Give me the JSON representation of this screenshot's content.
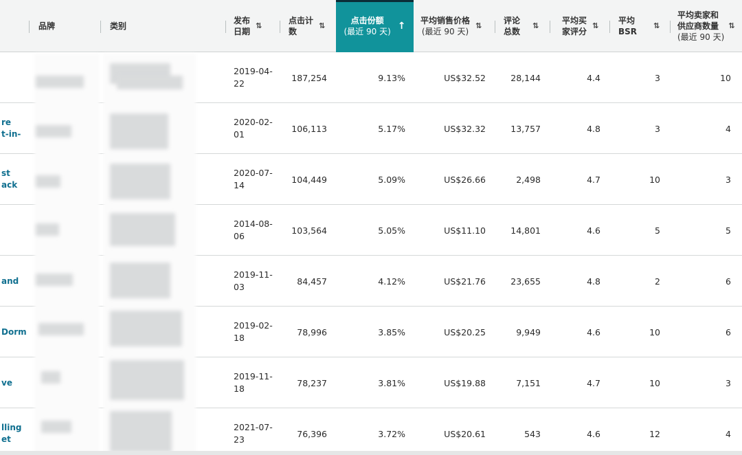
{
  "columns": {
    "brand": "品牌",
    "category": "类别",
    "release_date": "发布\n日期",
    "clicks": "点击计\n数",
    "click_share": "点击份额",
    "click_share_sub": "(最近 90 天)",
    "avg_price": "平均销售价格",
    "avg_price_sub": "(最近 90 天)",
    "reviews": "评论\n总数",
    "rating": "平均买\n家评分",
    "bsr": "平均\nBSR",
    "sellers": "平均卖家和\n供应商数量",
    "sellers_sub": "(最近 90 天)",
    "sort_icon": "⇅",
    "active_sort_icon": "↑"
  },
  "colors": {
    "active_header": "#11939b",
    "link": "#0f6f8f"
  },
  "rows": [
    {
      "product": "",
      "date": "2019-04-\n22",
      "clicks": "187,254",
      "share": "9.13%",
      "price": "US$32.52",
      "reviews": "28,144",
      "rating": "4.4",
      "bsr": "3",
      "sellers": "10"
    },
    {
      "product": "re\nt-in-",
      "date": "2020-02-\n01",
      "clicks": "106,113",
      "share": "5.17%",
      "price": "US$32.32",
      "reviews": "13,757",
      "rating": "4.8",
      "bsr": "3",
      "sellers": "4"
    },
    {
      "product": "st\nack",
      "date": "2020-07-\n14",
      "clicks": "104,449",
      "share": "5.09%",
      "price": "US$26.66",
      "reviews": "2,498",
      "rating": "4.7",
      "bsr": "10",
      "sellers": "3"
    },
    {
      "product": "",
      "date": "2014-08-\n06",
      "clicks": "103,564",
      "share": "5.05%",
      "price": "US$11.10",
      "reviews": "14,801",
      "rating": "4.6",
      "bsr": "5",
      "sellers": "5"
    },
    {
      "product": "and",
      "date": "2019-11-\n03",
      "clicks": "84,457",
      "share": "4.12%",
      "price": "US$21.76",
      "reviews": "23,655",
      "rating": "4.8",
      "bsr": "2",
      "sellers": "6"
    },
    {
      "product": "Dorm",
      "date": "2019-02-\n18",
      "clicks": "78,996",
      "share": "3.85%",
      "price": "US$20.25",
      "reviews": "9,949",
      "rating": "4.6",
      "bsr": "10",
      "sellers": "6"
    },
    {
      "product": "ve",
      "date": "2019-11-\n18",
      "clicks": "78,237",
      "share": "3.81%",
      "price": "US$19.88",
      "reviews": "7,151",
      "rating": "4.7",
      "bsr": "10",
      "sellers": "3"
    },
    {
      "product": "lling\net",
      "date": "2021-07-\n23",
      "clicks": "76,396",
      "share": "3.72%",
      "price": "US$20.61",
      "reviews": "543",
      "rating": "4.6",
      "bsr": "12",
      "sellers": "4"
    }
  ]
}
